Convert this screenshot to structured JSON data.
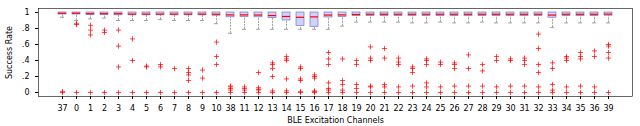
{
  "chart_data": {
    "type": "box",
    "xlabel": "BLE Excitation Channels",
    "ylabel": "Success Rate",
    "categories": [
      "37",
      "0",
      "1",
      "2",
      "3",
      "4",
      "5",
      "6",
      "7",
      "8",
      "9",
      "10",
      "38",
      "11",
      "12",
      "13",
      "14",
      "15",
      "16",
      "17",
      "18",
      "19",
      "20",
      "21",
      "22",
      "23",
      "24",
      "25",
      "26",
      "27",
      "28",
      "29",
      "30",
      "31",
      "32",
      "33",
      "34",
      "35",
      "36",
      "39"
    ],
    "stats": [
      {
        "q1": 0.975,
        "median": 0.99,
        "q3": 1.0,
        "whislo": 0.94,
        "whishi": 1.0,
        "fliers": [
          0.0,
          0.01
        ]
      },
      {
        "q1": 0.975,
        "median": 0.99,
        "q3": 1.0,
        "whislo": 0.9,
        "whishi": 1.0,
        "fliers": [
          0.0,
          0.85,
          0.86
        ]
      },
      {
        "q1": 0.97,
        "median": 0.985,
        "q3": 1.0,
        "whislo": 0.92,
        "whishi": 1.0,
        "fliers": [
          0.0,
          0.72,
          0.78,
          0.84
        ]
      },
      {
        "q1": 0.97,
        "median": 0.985,
        "q3": 1.0,
        "whislo": 0.93,
        "whishi": 1.0,
        "fliers": [
          0.0,
          0.75,
          0.78
        ]
      },
      {
        "q1": 0.965,
        "median": 0.985,
        "q3": 1.0,
        "whislo": 0.9,
        "whishi": 1.0,
        "fliers": [
          0.0,
          0.32,
          0.58,
          0.78
        ]
      },
      {
        "q1": 0.965,
        "median": 0.98,
        "q3": 1.0,
        "whislo": 0.9,
        "whishi": 1.0,
        "fliers": [
          0.0,
          0.4,
          0.67
        ]
      },
      {
        "q1": 0.965,
        "median": 0.98,
        "q3": 1.0,
        "whislo": 0.9,
        "whishi": 1.0,
        "fliers": [
          0.0,
          0.32,
          0.33
        ]
      },
      {
        "q1": 0.965,
        "median": 0.98,
        "q3": 1.0,
        "whislo": 0.91,
        "whishi": 1.0,
        "fliers": [
          0.0,
          0.32,
          0.35
        ]
      },
      {
        "q1": 0.965,
        "median": 0.98,
        "q3": 1.0,
        "whislo": 0.9,
        "whishi": 1.0,
        "fliers": [
          0.0,
          0.3
        ]
      },
      {
        "q1": 0.965,
        "median": 0.98,
        "q3": 1.0,
        "whislo": 0.9,
        "whishi": 1.0,
        "fliers": [
          0.0,
          0.15,
          0.22,
          0.25,
          0.3
        ]
      },
      {
        "q1": 0.965,
        "median": 0.98,
        "q3": 1.0,
        "whislo": 0.9,
        "whishi": 1.0,
        "fliers": [
          0.0,
          0.18,
          0.28
        ]
      },
      {
        "q1": 0.96,
        "median": 0.978,
        "q3": 1.0,
        "whislo": 0.86,
        "whishi": 1.0,
        "fliers": [
          0.0,
          0.35,
          0.45,
          0.63
        ]
      },
      {
        "q1": 0.94,
        "median": 0.97,
        "q3": 1.0,
        "whislo": 0.74,
        "whishi": 1.0,
        "fliers": [
          0.0,
          0.03,
          0.05,
          0.07,
          0.08
        ]
      },
      {
        "q1": 0.945,
        "median": 0.97,
        "q3": 1.0,
        "whislo": 0.79,
        "whishi": 1.0,
        "fliers": [
          0.0,
          0.03,
          0.05,
          0.07
        ]
      },
      {
        "q1": 0.94,
        "median": 0.968,
        "q3": 1.0,
        "whislo": 0.79,
        "whishi": 1.0,
        "fliers": [
          0.0,
          0.03,
          0.04,
          0.06,
          0.25
        ]
      },
      {
        "q1": 0.93,
        "median": 0.962,
        "q3": 1.0,
        "whislo": 0.79,
        "whishi": 1.0,
        "fliers": [
          0.0,
          0.02,
          0.2,
          0.3,
          0.35,
          0.37
        ]
      },
      {
        "q1": 0.9,
        "median": 0.95,
        "q3": 1.0,
        "whislo": 0.79,
        "whishi": 1.0,
        "fliers": [
          0.0,
          0.02,
          0.17,
          0.4,
          0.42,
          0.45
        ]
      },
      {
        "q1": 0.83,
        "median": 0.94,
        "q3": 1.0,
        "whislo": 0.79,
        "whishi": 1.0,
        "fliers": [
          0.0,
          0.01,
          0.15,
          0.17,
          0.3,
          0.32
        ]
      },
      {
        "q1": 0.82,
        "median": 0.945,
        "q3": 1.0,
        "whislo": 0.79,
        "whishi": 1.0,
        "fliers": [
          0.0,
          0.01,
          0.02,
          0.18,
          0.2,
          0.22
        ]
      },
      {
        "q1": 0.938,
        "median": 0.968,
        "q3": 1.0,
        "whislo": 0.79,
        "whishi": 1.0,
        "fliers": [
          0.0,
          0.03,
          0.05,
          0.12,
          0.35,
          0.42,
          0.5
        ]
      },
      {
        "q1": 0.945,
        "median": 0.97,
        "q3": 1.0,
        "whislo": 0.83,
        "whishi": 1.0,
        "fliers": [
          0.0,
          0.03,
          0.1,
          0.15,
          0.42
        ]
      },
      {
        "q1": 0.955,
        "median": 0.975,
        "q3": 1.0,
        "whislo": 0.88,
        "whishi": 1.0,
        "fliers": [
          0.0,
          0.05,
          0.1,
          0.35,
          0.4
        ]
      },
      {
        "q1": 0.955,
        "median": 0.978,
        "q3": 1.0,
        "whislo": 0.88,
        "whishi": 1.0,
        "fliers": [
          0.0,
          0.07,
          0.08,
          0.4,
          0.43,
          0.57
        ]
      },
      {
        "q1": 0.955,
        "median": 0.978,
        "q3": 1.0,
        "whislo": 0.88,
        "whishi": 1.0,
        "fliers": [
          0.0,
          0.07,
          0.1,
          0.43,
          0.55
        ]
      },
      {
        "q1": 0.955,
        "median": 0.978,
        "q3": 1.0,
        "whislo": 0.88,
        "whishi": 1.0,
        "fliers": [
          0.0,
          0.07,
          0.35,
          0.38,
          0.43
        ]
      },
      {
        "q1": 0.955,
        "median": 0.978,
        "q3": 1.0,
        "whislo": 0.87,
        "whishi": 1.0,
        "fliers": [
          0.0,
          0.08,
          0.25,
          0.3,
          0.32
        ]
      },
      {
        "q1": 0.955,
        "median": 0.978,
        "q3": 1.0,
        "whislo": 0.87,
        "whishi": 1.0,
        "fliers": [
          0.0,
          0.07,
          0.12,
          0.35,
          0.4,
          0.42
        ]
      },
      {
        "q1": 0.955,
        "median": 0.978,
        "q3": 1.0,
        "whislo": 0.88,
        "whishi": 1.0,
        "fliers": [
          0.0,
          0.07,
          0.35,
          0.38
        ]
      },
      {
        "q1": 0.955,
        "median": 0.978,
        "q3": 1.0,
        "whislo": 0.87,
        "whishi": 1.0,
        "fliers": [
          0.0,
          0.08,
          0.3,
          0.35,
          0.37
        ]
      },
      {
        "q1": 0.955,
        "median": 0.978,
        "q3": 1.0,
        "whislo": 0.87,
        "whishi": 1.0,
        "fliers": [
          0.0,
          0.08,
          0.3,
          0.47
        ]
      },
      {
        "q1": 0.955,
        "median": 0.978,
        "q3": 1.0,
        "whislo": 0.88,
        "whishi": 1.0,
        "fliers": [
          0.0,
          0.08,
          0.27,
          0.35
        ]
      },
      {
        "q1": 0.955,
        "median": 0.978,
        "q3": 1.0,
        "whislo": 0.87,
        "whishi": 1.0,
        "fliers": [
          0.0,
          0.07,
          0.4,
          0.45
        ]
      },
      {
        "q1": 0.955,
        "median": 0.978,
        "q3": 1.0,
        "whislo": 0.87,
        "whishi": 1.0,
        "fliers": [
          0.0,
          0.08,
          0.4,
          0.42
        ]
      },
      {
        "q1": 0.955,
        "median": 0.978,
        "q3": 1.0,
        "whislo": 0.87,
        "whishi": 1.0,
        "fliers": [
          0.0,
          0.08,
          0.35,
          0.4,
          0.43
        ]
      },
      {
        "q1": 0.955,
        "median": 0.978,
        "q3": 1.0,
        "whislo": 0.87,
        "whishi": 1.0,
        "fliers": [
          0.0,
          0.07,
          0.25,
          0.35,
          0.55,
          0.73
        ]
      },
      {
        "q1": 0.935,
        "median": 0.968,
        "q3": 1.0,
        "whislo": 0.81,
        "whishi": 1.0,
        "fliers": [
          0.0,
          0.03,
          0.1,
          0.3,
          0.37
        ]
      },
      {
        "q1": 0.955,
        "median": 0.978,
        "q3": 1.0,
        "whislo": 0.87,
        "whishi": 1.0,
        "fliers": [
          0.0,
          0.07,
          0.4,
          0.43,
          0.45
        ]
      },
      {
        "q1": 0.955,
        "median": 0.978,
        "q3": 1.0,
        "whislo": 0.87,
        "whishi": 1.0,
        "fliers": [
          0.0,
          0.08,
          0.42,
          0.45,
          0.5
        ]
      },
      {
        "q1": 0.955,
        "median": 0.978,
        "q3": 1.0,
        "whislo": 0.87,
        "whishi": 1.0,
        "fliers": [
          0.0,
          0.07,
          0.45,
          0.52
        ]
      },
      {
        "q1": 0.96,
        "median": 0.98,
        "q3": 1.0,
        "whislo": 0.87,
        "whishi": 1.0,
        "fliers": [
          0.0,
          0.43,
          0.5,
          0.58,
          0.6
        ]
      }
    ],
    "ylim": [
      -0.05,
      1.05
    ],
    "yticks": [
      0,
      {
        "value": 0.2,
        "label": ".2"
      },
      {
        "value": 0.4,
        "label": ".4"
      },
      {
        "value": 0.6,
        "label": ".6"
      },
      {
        "value": 0.8,
        "label": ".8"
      },
      1
    ],
    "grid": false,
    "color": "#d0d0ff",
    "box_edge_color": "#7777bb",
    "median_color": "#ff0000",
    "whisker_color": "#888888",
    "flier_color": "#ff0000",
    "marker": "plus"
  }
}
